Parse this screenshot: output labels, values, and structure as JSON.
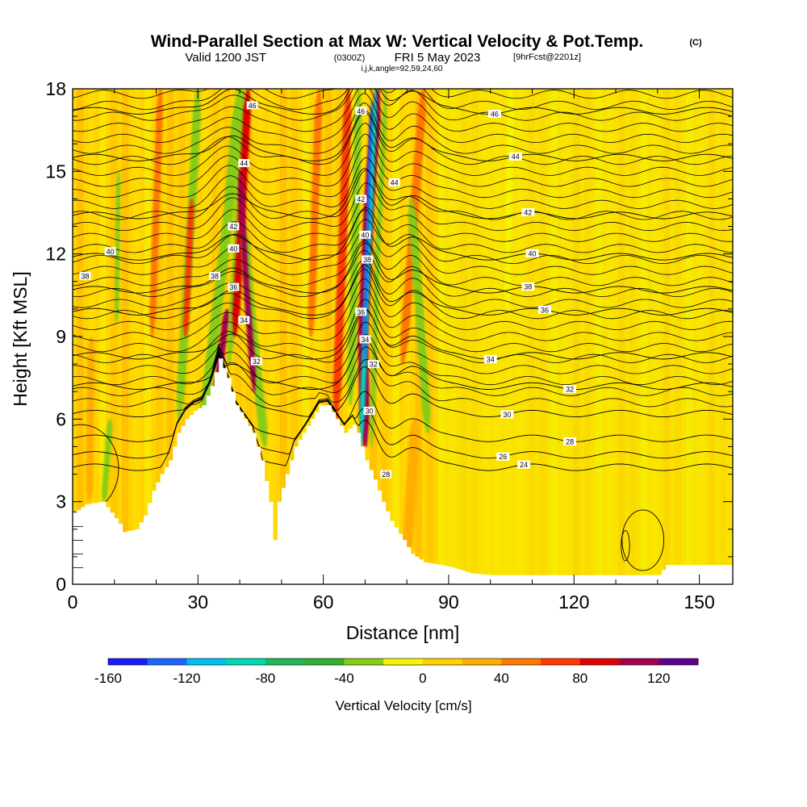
{
  "chart_data": {
    "type": "heatmap",
    "title": {
      "main": "Wind-Parallel Section at Max W: Vertical Velocity & Pot.Temp.",
      "copyright": "(C)",
      "valid_prefix": "Valid 1200 JST",
      "valid_zulu": "(0300Z)",
      "valid_date": "FRI 5 May 2023",
      "forecast": "[9hrFcst@2201z]",
      "params": "i,j,k,angle=92,59,24,60"
    },
    "xlabel": "Distance [nm]",
    "ylabel": "Height [Kft MSL]",
    "xlim": [
      0,
      158
    ],
    "ylim": [
      0,
      18
    ],
    "x_ticks": [
      "0",
      "30",
      "60",
      "90",
      "120",
      "150"
    ],
    "x_tick_values": [
      0,
      30,
      60,
      90,
      120,
      150
    ],
    "y_ticks": [
      "0",
      "3",
      "6",
      "9",
      "12",
      "15",
      "18"
    ],
    "y_tick_values": [
      0,
      3,
      6,
      9,
      12,
      15,
      18
    ],
    "colorbar": {
      "label": "Vertical Velocity [cm/s]",
      "tick_labels": [
        "-160",
        "-120",
        "-80",
        "-40",
        "0",
        "40",
        "80",
        "120"
      ],
      "tick_values": [
        -160,
        -120,
        -80,
        -40,
        0,
        40,
        80,
        120
      ],
      "range": [
        -160,
        140
      ],
      "step": 20,
      "colors": [
        "#1a1aff",
        "#1a66ff",
        "#00c0f0",
        "#00d8b0",
        "#20b858",
        "#30b030",
        "#88cc18",
        "#f5f500",
        "#ffd200",
        "#ffae00",
        "#ff7800",
        "#ff3a00",
        "#e00000",
        "#a80050",
        "#600090"
      ]
    },
    "background_color": "#ffd400",
    "terrain": [
      [
        0,
        2.6
      ],
      [
        3,
        2.9
      ],
      [
        7,
        3
      ],
      [
        9,
        2.6
      ],
      [
        11,
        2.2
      ],
      [
        12,
        1.9
      ],
      [
        15,
        2
      ],
      [
        17,
        2.5
      ],
      [
        19,
        3.4
      ],
      [
        21,
        4
      ],
      [
        23,
        4.5
      ],
      [
        25,
        5.5
      ],
      [
        27,
        6
      ],
      [
        29,
        6.3
      ],
      [
        31,
        6.5
      ],
      [
        33,
        7.2
      ],
      [
        35,
        8.2
      ],
      [
        37,
        7.5
      ],
      [
        39,
        6.5
      ],
      [
        41,
        6
      ],
      [
        43,
        5.5
      ],
      [
        45,
        4.5
      ],
      [
        47,
        3
      ],
      [
        48,
        1.6
      ],
      [
        49,
        3
      ],
      [
        51,
        4
      ],
      [
        53,
        5
      ],
      [
        55,
        5.5
      ],
      [
        57,
        6
      ],
      [
        59,
        6.5
      ],
      [
        61,
        6.5
      ],
      [
        63,
        6
      ],
      [
        65,
        5.5
      ],
      [
        67,
        5.8
      ],
      [
        68,
        5.5
      ],
      [
        70,
        4.5
      ],
      [
        72,
        3.8
      ],
      [
        74,
        3
      ],
      [
        76,
        2.3
      ],
      [
        79,
        1.6
      ],
      [
        81,
        1.1
      ],
      [
        84,
        0.8
      ],
      [
        88,
        0.7
      ],
      [
        91,
        0.6
      ],
      [
        95,
        0.4
      ],
      [
        100,
        0.33
      ],
      [
        140,
        0.33
      ],
      [
        142,
        0.7
      ],
      [
        158,
        0.7
      ]
    ],
    "velocity_bands": [
      {
        "x": [
          25.5,
          29,
          30
        ],
        "y": [
          6,
          15,
          18
        ],
        "w": 2.0,
        "v": -40
      },
      {
        "x": [
          27,
          28.5
        ],
        "y": [
          9,
          14
        ],
        "w": 1.4,
        "v": 60
      },
      {
        "x": [
          30.5,
          37,
          40
        ],
        "y": [
          5,
          13,
          18
        ],
        "w": 2.5,
        "v": -40
      },
      {
        "x": [
          34,
          37
        ],
        "y": [
          6.5,
          10
        ],
        "w": 1.6,
        "v": 100
      },
      {
        "x": [
          37.5,
          39.5,
          41
        ],
        "y": [
          8,
          13,
          18
        ],
        "w": 1.6,
        "v": -40
      },
      {
        "x": [
          38.8,
          40.5,
          42
        ],
        "y": [
          9,
          13.5,
          18
        ],
        "w": 1.8,
        "v": 90
      },
      {
        "x": [
          46,
          42.5,
          41
        ],
        "y": [
          5,
          10,
          13
        ],
        "w": 2.2,
        "v": -40
      },
      {
        "x": [
          43.5,
          41.5,
          40
        ],
        "y": [
          7,
          11,
          15
        ],
        "w": 1.4,
        "v": 100
      },
      {
        "x": [
          63,
          64.5,
          66
        ],
        "y": [
          6,
          12,
          18
        ],
        "w": 2.0,
        "v": 70
      },
      {
        "x": [
          66.5,
          67.5,
          68.5
        ],
        "y": [
          6.5,
          12,
          18
        ],
        "w": 1.8,
        "v": -40
      },
      {
        "x": [
          70,
          69.5,
          71,
          73
        ],
        "y": [
          5,
          9,
          14,
          18
        ],
        "w": 2.5,
        "v": 110
      },
      {
        "x": [
          69,
          70.5,
          72.5
        ],
        "y": [
          5,
          11,
          18
        ],
        "w": 1.2,
        "v": -100
      },
      {
        "x": [
          69.8,
          70.5,
          71.5
        ],
        "y": [
          8,
          12,
          17.5
        ],
        "w": 0.7,
        "v": -130
      },
      {
        "x": [
          71.5,
          73,
          75
        ],
        "y": [
          5,
          12,
          18
        ],
        "w": 1.2,
        "v": -40
      },
      {
        "x": [
          79,
          82,
          84
        ],
        "y": [
          8,
          14,
          18
        ],
        "w": 2.0,
        "v": 40
      },
      {
        "x": [
          85,
          83,
          81
        ],
        "y": [
          5.5,
          10,
          14
        ],
        "w": 2.0,
        "v": -40
      },
      {
        "x": [
          7.5,
          9
        ],
        "y": [
          3,
          6
        ],
        "w": 1.4,
        "v": -40
      },
      {
        "x": [
          10.5,
          11
        ],
        "y": [
          9.5,
          15
        ],
        "w": 1.0,
        "v": -40
      },
      {
        "x": [
          19,
          21
        ],
        "y": [
          9,
          18
        ],
        "w": 1.6,
        "v": 40
      },
      {
        "x": [
          57,
          59
        ],
        "y": [
          9,
          18
        ],
        "w": 1.8,
        "v": 40
      },
      {
        "x": [
          80,
          82
        ],
        "y": [
          1,
          6
        ],
        "w": 2.5,
        "v": 30
      },
      {
        "x": [
          104,
          105
        ],
        "y": [
          10,
          18
        ],
        "w": 1.5,
        "v": -20
      },
      {
        "x": [
          4,
          4.5
        ],
        "y": [
          3,
          9
        ],
        "w": 1.8,
        "v": 20
      }
    ],
    "isentropes": [
      {
        "base": 4.25,
        "label": "24",
        "label_x": 108
      },
      {
        "base": 4.7,
        "label": "26",
        "label_x": 103
      },
      {
        "base": 5.3,
        "label": "28",
        "label_x": 119
      },
      {
        "base": 6.2,
        "label": "30",
        "label_x": 104
      },
      {
        "base": 7.2,
        "label": "32",
        "label_x": 119
      },
      {
        "base": 8.3,
        "label": "34",
        "label_x": 100
      },
      {
        "base": 9.9,
        "label": "36",
        "label_x": 113
      },
      {
        "base": 10.7,
        "label": "38",
        "label_x": 109
      },
      {
        "base": 11.9,
        "label": "40",
        "label_x": 110
      },
      {
        "base": 13.4,
        "label": "42",
        "label_x": 109
      },
      {
        "base": 15.5,
        "label": "44",
        "label_x": 106
      },
      {
        "base": 17.2,
        "label": "46",
        "label_x": 101
      }
    ],
    "inline_labels": [
      {
        "text": "40",
        "x": 9,
        "y": 12.1
      },
      {
        "text": "38",
        "x": 3,
        "y": 11.2
      },
      {
        "text": "38",
        "x": 34,
        "y": 11.2
      },
      {
        "text": "36",
        "x": 38.5,
        "y": 10.8
      },
      {
        "text": "40",
        "x": 38.5,
        "y": 12.2
      },
      {
        "text": "42",
        "x": 38.5,
        "y": 13.0
      },
      {
        "text": "44",
        "x": 41,
        "y": 15.3
      },
      {
        "text": "46",
        "x": 43,
        "y": 17.4
      },
      {
        "text": "34",
        "x": 41,
        "y": 9.6
      },
      {
        "text": "32",
        "x": 44,
        "y": 8.1
      },
      {
        "text": "46",
        "x": 69,
        "y": 17.2
      },
      {
        "text": "44",
        "x": 77,
        "y": 14.6
      },
      {
        "text": "42",
        "x": 69,
        "y": 14.0
      },
      {
        "text": "40",
        "x": 70,
        "y": 12.7
      },
      {
        "text": "38",
        "x": 70.5,
        "y": 11.8
      },
      {
        "text": "36",
        "x": 69,
        "y": 9.9
      },
      {
        "text": "34",
        "x": 70,
        "y": 8.9
      },
      {
        "text": "32",
        "x": 72,
        "y": 8.0
      },
      {
        "text": "30",
        "x": 71,
        "y": 6.3
      },
      {
        "text": "28",
        "x": 75,
        "y": 4.0
      }
    ]
  }
}
